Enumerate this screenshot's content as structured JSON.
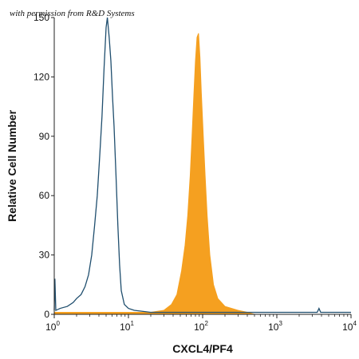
{
  "credit": "with permission from R&D Systems",
  "chart_data": {
    "type": "area",
    "xscale": "log",
    "xlim": [
      1,
      10000
    ],
    "ylim": [
      0,
      150
    ],
    "xlabel": "CXCL4/PF4",
    "ylabel": "Relative Cell Number",
    "yticks": [
      "0",
      "30",
      "60",
      "90",
      "120",
      "150"
    ],
    "xticks": [
      {
        "base": "10",
        "exp": "0"
      },
      {
        "base": "10",
        "exp": "1"
      },
      {
        "base": "10",
        "exp": "2"
      },
      {
        "base": "10",
        "exp": "3"
      },
      {
        "base": "10",
        "exp": "4"
      }
    ],
    "series": [
      {
        "style": "outline",
        "color": "#1f4e6e",
        "points": [
          [
            1.0,
            2
          ],
          [
            1.02,
            18
          ],
          [
            1.05,
            2
          ],
          [
            1.2,
            3
          ],
          [
            1.5,
            4
          ],
          [
            1.8,
            6
          ],
          [
            2.0,
            8
          ],
          [
            2.3,
            10
          ],
          [
            2.6,
            14
          ],
          [
            2.9,
            20
          ],
          [
            3.2,
            30
          ],
          [
            3.5,
            45
          ],
          [
            3.8,
            60
          ],
          [
            4.1,
            80
          ],
          [
            4.4,
            100
          ],
          [
            4.7,
            125
          ],
          [
            5.0,
            145
          ],
          [
            5.2,
            150
          ],
          [
            5.5,
            140
          ],
          [
            5.8,
            128
          ],
          [
            6.1,
            110
          ],
          [
            6.4,
            95
          ],
          [
            6.8,
            70
          ],
          [
            7.2,
            45
          ],
          [
            7.6,
            25
          ],
          [
            8.0,
            12
          ],
          [
            8.8,
            5
          ],
          [
            10,
            3
          ],
          [
            12,
            2
          ],
          [
            20,
            1
          ],
          [
            40,
            1
          ],
          [
            100,
            1
          ],
          [
            1000,
            1
          ],
          [
            3500,
            1
          ],
          [
            3700,
            3
          ],
          [
            3900,
            1
          ],
          [
            10000,
            1
          ]
        ]
      },
      {
        "style": "filled",
        "color": "#f5a020",
        "points": [
          [
            1,
            1
          ],
          [
            10,
            1
          ],
          [
            20,
            1
          ],
          [
            30,
            2
          ],
          [
            38,
            5
          ],
          [
            45,
            10
          ],
          [
            52,
            22
          ],
          [
            58,
            35
          ],
          [
            63,
            50
          ],
          [
            68,
            70
          ],
          [
            72,
            90
          ],
          [
            76,
            110
          ],
          [
            80,
            128
          ],
          [
            84,
            140
          ],
          [
            88,
            142
          ],
          [
            92,
            130
          ],
          [
            96,
            112
          ],
          [
            102,
            90
          ],
          [
            108,
            70
          ],
          [
            115,
            50
          ],
          [
            125,
            30
          ],
          [
            140,
            15
          ],
          [
            160,
            8
          ],
          [
            200,
            4
          ],
          [
            300,
            2
          ],
          [
            400,
            1
          ],
          [
            500,
            0
          ]
        ]
      }
    ]
  }
}
